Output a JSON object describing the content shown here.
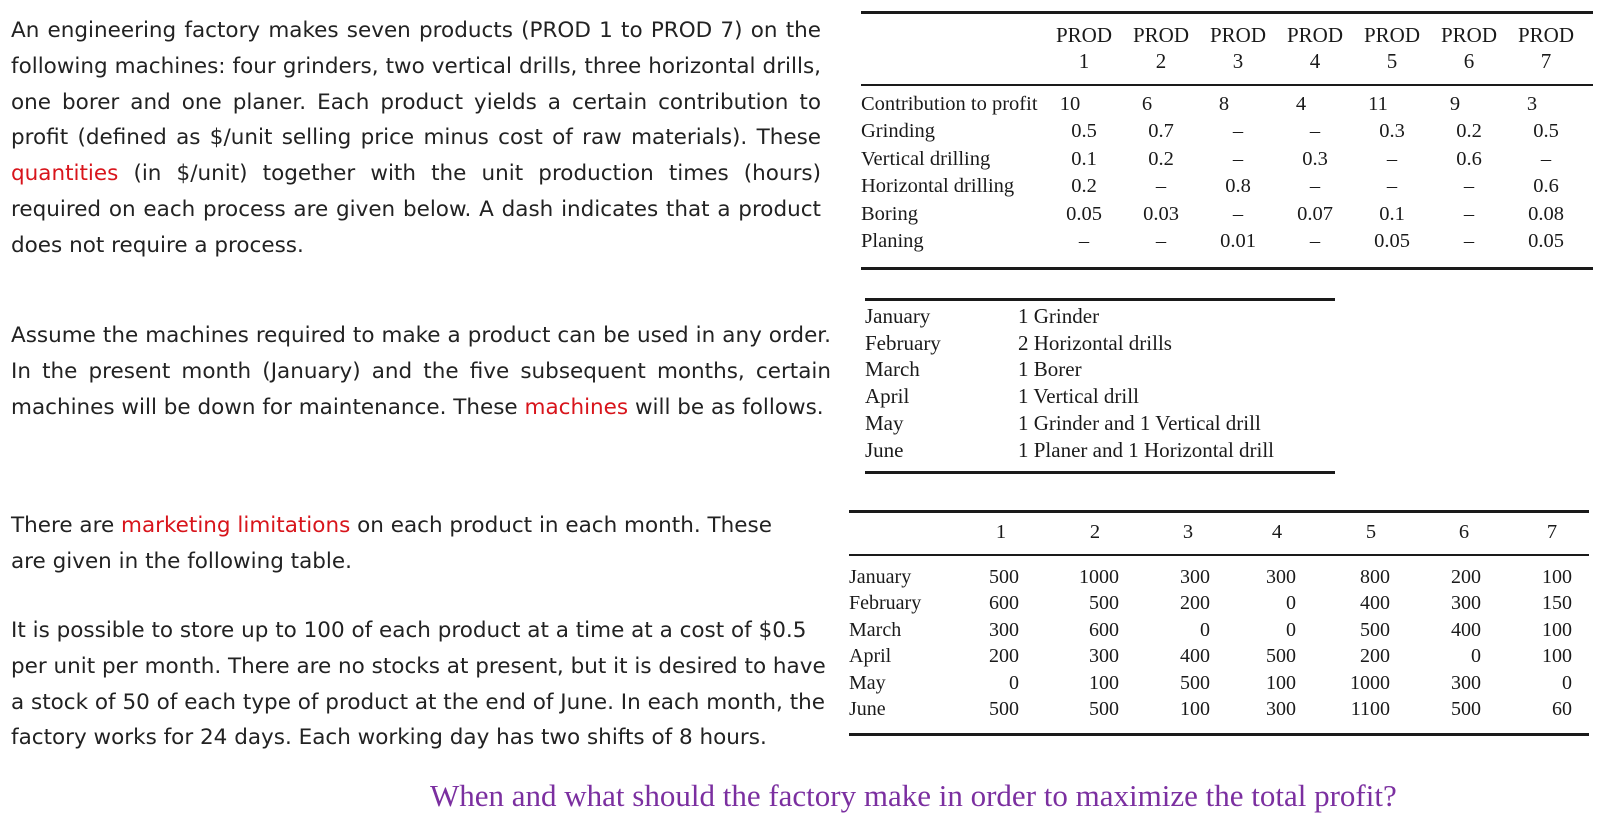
{
  "paragraphs": {
    "p1": [
      "An engineering factory makes seven products (PROD 1 to PROD 7) on the following machines: four grinders, two vertical drills, three horizontal drills, one borer and one planer. Each product yields a certain contribution to profit (defined as $/unit selling price minus cost of raw materials). These ",
      "quantities",
      " (in $/unit) together with the unit production times (hours) required on each process are given below. A dash indicates that a product does not require a process."
    ],
    "p2": [
      "Assume the machines required to make a product can be used in any order. In the present month (January) and the five subsequent months, certain machines will be down for maintenance. These ",
      "machines",
      " will be as follows."
    ],
    "p3": [
      "There are ",
      "marketing limitations",
      " on each product in each month. These are given in the following table."
    ],
    "p4": "It is possible to store up to 100 of each product at a time at a cost of $0.5 per unit per month. There are no stocks at present, but it is desired to have a stock of 50 of each type of product at the end of June. In each month, the factory works for 24 days. Each working day has two shifts of 8 hours."
  },
  "table1": {
    "headers": [
      [
        "PROD",
        "1"
      ],
      [
        "PROD",
        "2"
      ],
      [
        "PROD",
        "3"
      ],
      [
        "PROD",
        "4"
      ],
      [
        "PROD",
        "5"
      ],
      [
        "PROD",
        "6"
      ],
      [
        "PROD",
        "7"
      ]
    ],
    "rows": [
      {
        "label": "Contribution to profit",
        "values": [
          "10",
          "6",
          "8",
          "4",
          "11",
          "9",
          "3"
        ]
      },
      {
        "label": "Grinding",
        "values": [
          "0.5",
          "0.7",
          "–",
          "–",
          "0.3",
          "0.2",
          "0.5"
        ]
      },
      {
        "label": "Vertical drilling",
        "values": [
          "0.1",
          "0.2",
          "–",
          "0.3",
          "–",
          "0.6",
          "–"
        ]
      },
      {
        "label": "Horizontal drilling",
        "values": [
          "0.2",
          "–",
          "0.8",
          "–",
          "–",
          "–",
          "0.6"
        ]
      },
      {
        "label": "Boring",
        "values": [
          "0.05",
          "0.03",
          "–",
          "0.07",
          "0.1",
          "–",
          "0.08"
        ]
      },
      {
        "label": "Planing",
        "values": [
          "–",
          "–",
          "0.01",
          "–",
          "0.05",
          "–",
          "0.05"
        ]
      }
    ]
  },
  "table2": {
    "rows": [
      {
        "month": "January",
        "down": "1 Grinder"
      },
      {
        "month": "February",
        "down": "2 Horizontal drills"
      },
      {
        "month": "March",
        "down": "1 Borer"
      },
      {
        "month": "April",
        "down": "1 Vertical drill"
      },
      {
        "month": "May",
        "down": "1 Grinder and 1 Vertical drill"
      },
      {
        "month": "June",
        "down": "1 Planer and 1 Horizontal drill"
      }
    ]
  },
  "table3": {
    "headers": [
      "1",
      "2",
      "3",
      "4",
      "5",
      "6",
      "7"
    ],
    "rows": [
      {
        "month": "January",
        "values": [
          "500",
          "1000",
          "300",
          "300",
          "800",
          "200",
          "100"
        ]
      },
      {
        "month": "February",
        "values": [
          "600",
          "500",
          "200",
          "0",
          "400",
          "300",
          "150"
        ]
      },
      {
        "month": "March",
        "values": [
          "300",
          "600",
          "0",
          "0",
          "500",
          "400",
          "100"
        ]
      },
      {
        "month": "April",
        "values": [
          "200",
          "300",
          "400",
          "500",
          "200",
          "0",
          "100"
        ]
      },
      {
        "month": "May",
        "values": [
          "0",
          "100",
          "500",
          "100",
          "1000",
          "300",
          "0"
        ]
      },
      {
        "month": "June",
        "values": [
          "500",
          "500",
          "100",
          "300",
          "1100",
          "500",
          "60"
        ]
      }
    ]
  },
  "question": "When and what should the factory make in order to maximize the total profit?",
  "colors": {
    "highlight": "#d8141b",
    "question": "#7b2fa0"
  }
}
